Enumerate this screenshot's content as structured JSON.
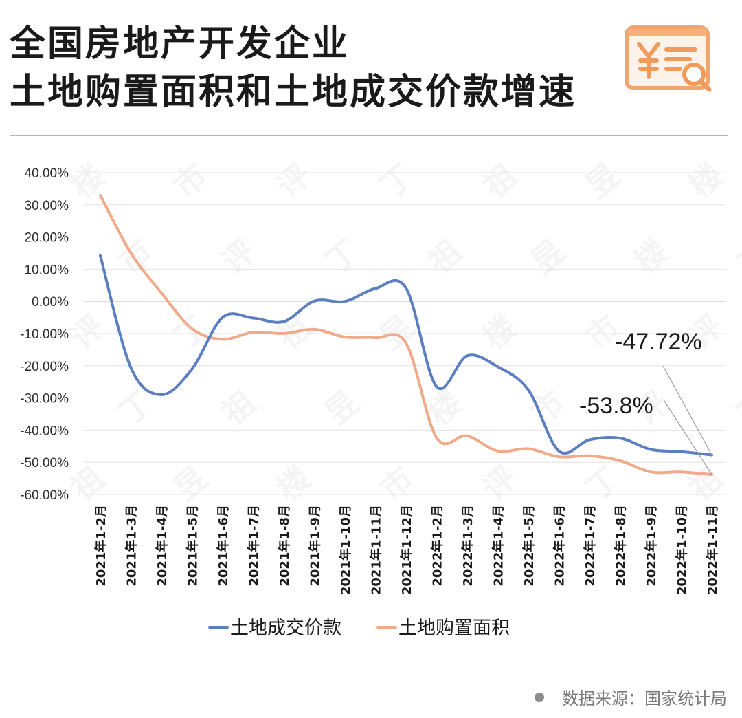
{
  "header": {
    "title_line1": "全国房地产开发企业",
    "title_line2": "土地购置面积和土地成交价款增速",
    "logo_icon": "yuan-receipt-search-icon"
  },
  "footer": {
    "source": "数据来源：国家统计局"
  },
  "chart_data": {
    "type": "line",
    "title": "全国房地产开发企业土地购置面积和土地成交价款增速",
    "categories": [
      "2021年1-2月",
      "2021年1-3月",
      "2021年1-4月",
      "2021年1-5月",
      "2021年1-6月",
      "2021年1-7月",
      "2021年1-8月",
      "2021年1-9月",
      "2021年1-10月",
      "2021年1-11月",
      "2021年1-12月",
      "2022年1-2月",
      "2022年1-3月",
      "2022年1-4月",
      "2022年1-5月",
      "2022年1-6月",
      "2022年1-7月",
      "2022年1-8月",
      "2022年1-9月",
      "2022年1-10月",
      "2022年1-11月"
    ],
    "y_ticks": [
      "40.00%",
      "30.00%",
      "20.00%",
      "10.00%",
      "0.00%",
      "-10.00%",
      "-20.00%",
      "-30.00%",
      "-40.00%",
      "-50.00%",
      "-60.00%"
    ],
    "ylim": [
      -60,
      40
    ],
    "grid": true,
    "legend_position": "bottom",
    "series": [
      {
        "name": "土地成交价款",
        "color": "#5b7fc0",
        "values": [
          14.2,
          -20.6,
          -29.0,
          -21.0,
          -5.0,
          -5.2,
          -6.3,
          0.1,
          0.0,
          4.0,
          4.1,
          -26.5,
          -16.9,
          -20.3,
          -27.5,
          -46.5,
          -43.0,
          -42.5,
          -46.0,
          -46.7,
          -47.72
        ],
        "end_label": "-47.72%"
      },
      {
        "name": "土地购置面积",
        "color": "#f0aa8a",
        "values": [
          33.0,
          15.0,
          2.6,
          -8.5,
          -11.8,
          -9.6,
          -10.0,
          -8.7,
          -11.1,
          -11.3,
          -13.0,
          -42.4,
          -41.8,
          -46.5,
          -45.8,
          -48.3,
          -48.0,
          -49.5,
          -53.0,
          -53.0,
          -53.8
        ],
        "end_label": "-53.8%"
      }
    ]
  }
}
